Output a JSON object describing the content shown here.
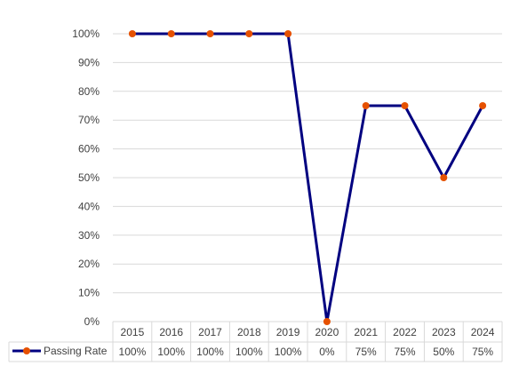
{
  "chart_data": {
    "type": "line",
    "categories": [
      "2015",
      "2016",
      "2017",
      "2018",
      "2019",
      "2020",
      "2021",
      "2022",
      "2023",
      "2024"
    ],
    "series": [
      {
        "name": "Passing Rate",
        "values": [
          100,
          100,
          100,
          100,
          100,
          0,
          75,
          75,
          50,
          75
        ],
        "labels": [
          "100%",
          "100%",
          "100%",
          "100%",
          "100%",
          "0%",
          "75%",
          "75%",
          "50%",
          "75%"
        ]
      }
    ],
    "y_ticks": [
      "0%",
      "10%",
      "20%",
      "30%",
      "40%",
      "50%",
      "60%",
      "70%",
      "80%",
      "90%",
      "100%"
    ],
    "ylim": [
      0,
      100
    ],
    "grid": true,
    "data_table": true,
    "colors": {
      "line": "#000080",
      "marker": "#E65100",
      "grid": "#D9D9D9",
      "text": "#404040"
    }
  }
}
